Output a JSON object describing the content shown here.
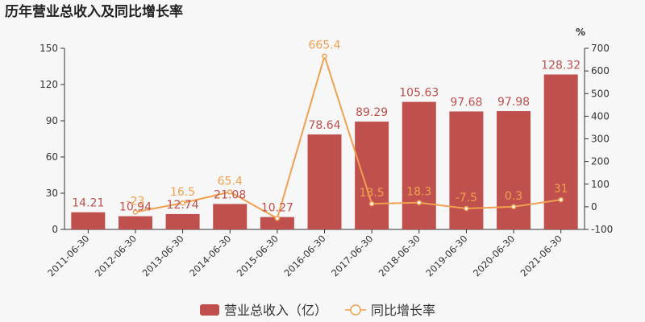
{
  "title": "历年营业总收入及同比增长率",
  "chart_data": {
    "type": "bar+line",
    "title": "历年营业总收入及同比增长率",
    "categories": [
      "2011-06-30",
      "2012-06-30",
      "2013-06-30",
      "2014-06-30",
      "2015-06-30",
      "2016-06-30",
      "2017-06-30",
      "2018-06-30",
      "2019-06-30",
      "2020-06-30",
      "2021-06-30"
    ],
    "series": [
      {
        "name": "营业总收入（亿）",
        "type": "bar",
        "axis": "left",
        "color": "#c0504d",
        "values": [
          14.21,
          10.94,
          12.74,
          21.08,
          10.27,
          78.64,
          89.29,
          105.63,
          97.68,
          97.98,
          128.32
        ],
        "labels": [
          "14.21",
          "10.94",
          "12.74",
          "21.08",
          "10.27",
          "78.64",
          "89.29",
          "105.63",
          "97.68",
          "97.98",
          "128.32"
        ]
      },
      {
        "name": "同比增长率",
        "type": "line",
        "axis": "right",
        "color": "#f0a050",
        "values": [
          null,
          -23,
          16.5,
          65.4,
          -51.3,
          665.4,
          13.5,
          18.3,
          -7.5,
          0.3,
          31
        ],
        "labels": [
          "",
          "-23",
          "16.5",
          "65.4",
          "",
          "665.4",
          "13.5",
          "18.3",
          "-7.5",
          "0.3",
          "31"
        ]
      }
    ],
    "y_left": {
      "min": 0,
      "max": 150,
      "ticks": [
        0,
        30,
        60,
        90,
        120,
        150
      ]
    },
    "y_right": {
      "min": -100,
      "max": 700,
      "ticks": [
        -100,
        0,
        100,
        200,
        300,
        400,
        500,
        600,
        700
      ],
      "unit": "%"
    },
    "legend": {
      "position": "bottom",
      "items": [
        {
          "label": "营业总收入（亿）",
          "color": "#c0504d",
          "shape": "rect"
        },
        {
          "label": "同比增长率",
          "color": "#f0a050",
          "shape": "line-circle"
        }
      ]
    },
    "grid": false
  }
}
